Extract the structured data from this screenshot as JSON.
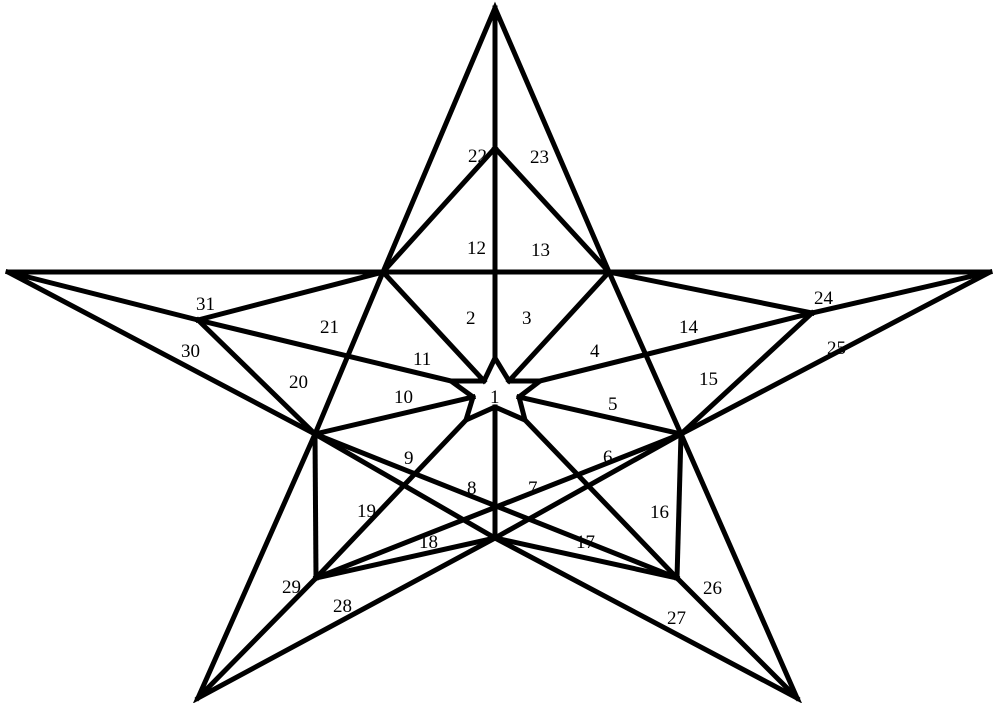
{
  "diagram": {
    "colors": {
      "stroke": "#000000",
      "background": "#ffffff",
      "text": "#000000"
    },
    "regions": [
      "1",
      "2",
      "3",
      "4",
      "5",
      "6",
      "7",
      "8",
      "9",
      "10",
      "11",
      "12",
      "13",
      "14",
      "15",
      "16",
      "17",
      "18",
      "19",
      "20",
      "21",
      "22",
      "23",
      "24",
      "25",
      "26",
      "27",
      "28",
      "29",
      "30",
      "31"
    ]
  }
}
